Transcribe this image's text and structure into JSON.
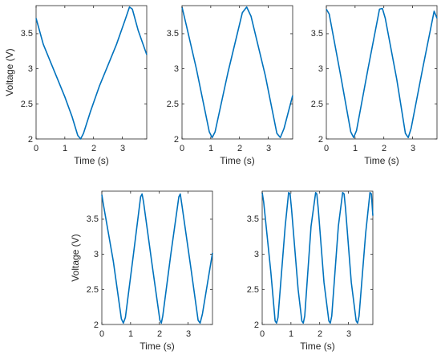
{
  "chart_data": [
    {
      "type": "line",
      "xlabel": "Time (s)",
      "ylabel": "Voltage (V)",
      "xlim": [
        0,
        3.85
      ],
      "ylim": [
        2,
        3.9
      ],
      "xticks": [
        0,
        1,
        2,
        3
      ],
      "yticks": [
        2,
        2.5,
        3,
        3.5
      ],
      "xtick_labels": [
        "0",
        "1",
        "2",
        "3"
      ],
      "ytick_labels": [
        "2",
        "2.5",
        "3",
        "3.5"
      ],
      "grid": false,
      "line_color": "#0072BD",
      "series": [
        {
          "x": [
            0,
            0.25,
            0.5,
            0.75,
            1.0,
            1.25,
            1.45,
            1.55,
            1.65,
            1.9,
            2.2,
            2.5,
            2.8,
            3.1,
            3.25,
            3.35,
            3.55,
            3.85
          ],
          "y": [
            3.72,
            3.35,
            3.1,
            2.85,
            2.6,
            2.32,
            2.05,
            2.0,
            2.08,
            2.4,
            2.75,
            3.05,
            3.35,
            3.7,
            3.88,
            3.85,
            3.55,
            3.2
          ]
        }
      ]
    },
    {
      "type": "line",
      "xlabel": "Time (s)",
      "ylabel": "",
      "xlim": [
        0,
        3.85
      ],
      "ylim": [
        2,
        3.9
      ],
      "xticks": [
        0,
        1,
        2,
        3
      ],
      "yticks": [
        2,
        2.5,
        3,
        3.5
      ],
      "xtick_labels": [
        "0",
        "1",
        "2",
        "3"
      ],
      "ytick_labels": [
        "2",
        "2.5",
        "3",
        "3.5"
      ],
      "grid": false,
      "line_color": "#0072BD",
      "series": [
        {
          "x": [
            0,
            0.15,
            0.5,
            0.95,
            1.05,
            1.15,
            1.6,
            2.1,
            2.25,
            2.4,
            2.9,
            3.3,
            3.42,
            3.55,
            3.85
          ],
          "y": [
            3.88,
            3.62,
            3.0,
            2.1,
            2.02,
            2.1,
            2.95,
            3.8,
            3.88,
            3.75,
            2.9,
            2.08,
            2.02,
            2.15,
            2.62
          ]
        }
      ]
    },
    {
      "type": "line",
      "xlabel": "Time (s)",
      "ylabel": "",
      "xlim": [
        0,
        3.85
      ],
      "ylim": [
        2,
        3.9
      ],
      "xticks": [
        0,
        1,
        2,
        3
      ],
      "yticks": [
        2,
        2.5,
        3,
        3.5
      ],
      "xtick_labels": [
        "0",
        "1",
        "2",
        "3"
      ],
      "ytick_labels": [
        "2",
        "2.5",
        "3",
        "3.5"
      ],
      "grid": false,
      "line_color": "#0072BD",
      "series": [
        {
          "x": [
            0,
            0.1,
            0.5,
            0.85,
            0.95,
            1.05,
            1.45,
            1.85,
            1.95,
            2.05,
            2.45,
            2.75,
            2.85,
            2.95,
            3.35,
            3.75,
            3.85
          ],
          "y": [
            3.85,
            3.78,
            2.9,
            2.1,
            2.02,
            2.12,
            3.0,
            3.85,
            3.86,
            3.72,
            2.85,
            2.08,
            2.02,
            2.15,
            3.0,
            3.82,
            3.72
          ]
        }
      ]
    },
    {
      "type": "line",
      "xlabel": "Time (s)",
      "ylabel": "Voltage (V)",
      "xlim": [
        0,
        3.85
      ],
      "ylim": [
        2,
        3.9
      ],
      "xticks": [
        0,
        1,
        2,
        3
      ],
      "yticks": [
        2,
        2.5,
        3,
        3.5
      ],
      "xtick_labels": [
        "0",
        "1",
        "2",
        "3"
      ],
      "ytick_labels": [
        "2",
        "2.5",
        "3",
        "3.5"
      ],
      "grid": false,
      "line_color": "#0072BD",
      "series": [
        {
          "x": [
            0,
            0.05,
            0.4,
            0.68,
            0.75,
            0.82,
            1.1,
            1.35,
            1.4,
            1.45,
            1.75,
            2.02,
            2.07,
            2.12,
            2.4,
            2.68,
            2.73,
            2.78,
            3.1,
            3.35,
            3.42,
            3.5,
            3.85
          ],
          "y": [
            3.85,
            3.72,
            2.9,
            2.08,
            2.02,
            2.1,
            3.0,
            3.82,
            3.86,
            3.75,
            2.85,
            2.06,
            2.02,
            2.12,
            3.0,
            3.82,
            3.86,
            3.72,
            2.8,
            2.06,
            2.02,
            2.15,
            3.02
          ]
        }
      ]
    },
    {
      "type": "line",
      "xlabel": "Time (s)",
      "ylabel": "",
      "xlim": [
        0,
        3.85
      ],
      "ylim": [
        2,
        3.9
      ],
      "xticks": [
        0,
        1,
        2,
        3
      ],
      "yticks": [
        2,
        2.5,
        3,
        3.5
      ],
      "xtick_labels": [
        "0",
        "1",
        "2",
        "3"
      ],
      "ytick_labels": [
        "2",
        "2.5",
        "3",
        "3.5"
      ],
      "grid": false,
      "line_color": "#0072BD",
      "series": [
        {
          "x": [
            0,
            0.05,
            0.3,
            0.45,
            0.5,
            0.55,
            0.8,
            0.92,
            0.97,
            1.02,
            1.25,
            1.38,
            1.43,
            1.48,
            1.7,
            1.86,
            1.9,
            1.95,
            2.15,
            2.32,
            2.37,
            2.42,
            2.65,
            2.8,
            2.85,
            2.9,
            3.1,
            3.27,
            3.32,
            3.37,
            3.6,
            3.75,
            3.8,
            3.85
          ],
          "y": [
            3.88,
            3.75,
            2.75,
            2.05,
            2.02,
            2.1,
            3.4,
            3.88,
            3.86,
            3.65,
            2.5,
            2.05,
            2.02,
            2.12,
            3.4,
            3.88,
            3.86,
            3.65,
            2.6,
            2.05,
            2.02,
            2.12,
            3.4,
            3.88,
            3.86,
            3.65,
            2.6,
            2.05,
            2.02,
            2.12,
            3.3,
            3.88,
            3.86,
            3.55
          ]
        }
      ]
    }
  ]
}
